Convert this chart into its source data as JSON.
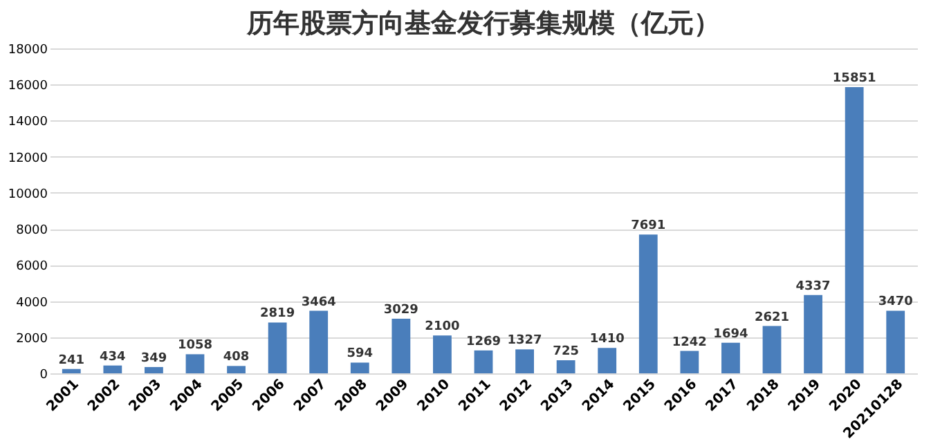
{
  "chart_data": {
    "type": "bar",
    "title": "历年股票方向基金发行募集规模（亿元）",
    "categories": [
      "2001",
      "2002",
      "2003",
      "2004",
      "2005",
      "2006",
      "2007",
      "2008",
      "2009",
      "2010",
      "2011",
      "2012",
      "2013",
      "2014",
      "2015",
      "2016",
      "2017",
      "2018",
      "2019",
      "2020",
      "20210128"
    ],
    "values": [
      241,
      434,
      349,
      1058,
      408,
      2819,
      3464,
      594,
      3029,
      2100,
      1269,
      1327,
      725,
      1410,
      7691,
      1242,
      1694,
      2621,
      4337,
      15851,
      3470
    ],
    "color": "#4a7ebb",
    "ylim": [
      0,
      18000
    ],
    "yticks": [
      0,
      2000,
      4000,
      6000,
      8000,
      10000,
      12000,
      14000,
      16000,
      18000
    ],
    "grid": "y",
    "data_labels": true
  }
}
